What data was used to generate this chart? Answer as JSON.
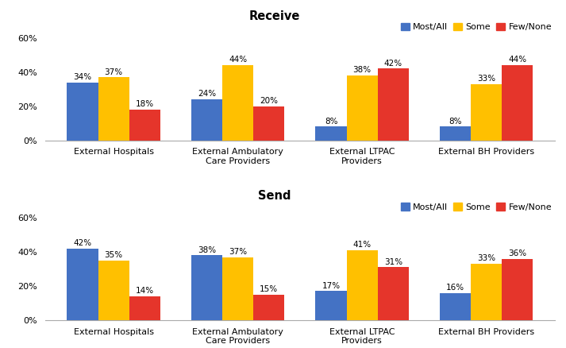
{
  "receive": {
    "categories": [
      "External Hospitals",
      "External Ambulatory\nCare Providers",
      "External LTPAC\nProviders",
      "External BH Providers"
    ],
    "most_all": [
      34,
      24,
      8,
      8
    ],
    "some": [
      37,
      44,
      38,
      33
    ],
    "few_none": [
      18,
      20,
      42,
      44
    ]
  },
  "send": {
    "categories": [
      "External Hospitals",
      "External Ambulatory\nCare Providers",
      "External LTPAC\nProviders",
      "External BH Providers"
    ],
    "most_all": [
      42,
      38,
      17,
      16
    ],
    "some": [
      35,
      37,
      41,
      33
    ],
    "few_none": [
      14,
      15,
      31,
      36
    ]
  },
  "colors": {
    "most_all": "#4472C4",
    "some": "#FFC000",
    "few_none": "#E5352B"
  },
  "legend_labels": [
    "Most/All",
    "Some",
    "Few/None"
  ],
  "receive_title": "Receive",
  "send_title": "Send",
  "ylim": [
    0,
    68
  ],
  "yticks": [
    0,
    20,
    40,
    60
  ],
  "ytick_labels": [
    "0%",
    "20%",
    "40%",
    "60%"
  ],
  "bar_width": 0.25,
  "title_fontsize": 10.5,
  "label_fontsize": 7.5,
  "tick_fontsize": 8,
  "legend_fontsize": 8
}
